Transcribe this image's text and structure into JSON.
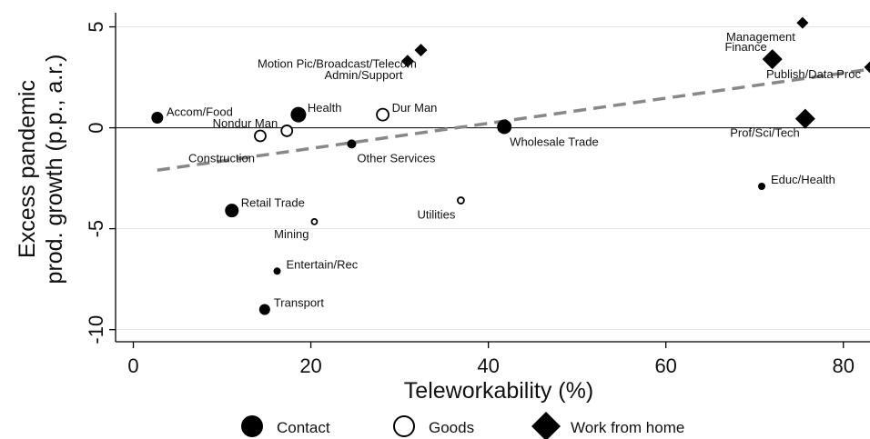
{
  "chart_data": {
    "type": "scatter",
    "xlabel": "Teleworkability (%)",
    "ylabel_lines": [
      "Excess pandemic",
      "prod. growth (p.p., a.r.)"
    ],
    "xlim": [
      -2,
      83
    ],
    "ylim": [
      -10.6,
      5.7
    ],
    "xticks": [
      0,
      20,
      40,
      60,
      80
    ],
    "yticks": [
      5,
      0,
      -5,
      -10
    ],
    "ygrid": true,
    "zero_line": true,
    "fit_line": {
      "x": [
        2.7,
        83
      ],
      "y": [
        -2.1,
        2.9
      ],
      "color": "#888888"
    },
    "legend_position": "bottom",
    "legend": [
      {
        "label": "Contact",
        "marker": "filled-circle"
      },
      {
        "label": "Goods",
        "marker": "hollow-circle"
      },
      {
        "label": "Work from home",
        "marker": "diamond"
      }
    ],
    "points": [
      {
        "label": "Accom/Food",
        "group": "Contact",
        "x": 2.7,
        "y": 0.5,
        "size": 6.5
      },
      {
        "label": "Health",
        "group": "Contact",
        "x": 18.6,
        "y": 0.65,
        "size": 8.5
      },
      {
        "label": "Retail Trade",
        "group": "Contact",
        "x": 11.1,
        "y": -4.1,
        "size": 7.5
      },
      {
        "label": "Entertain/Rec",
        "group": "Contact",
        "x": 16.2,
        "y": -7.1,
        "size": 4
      },
      {
        "label": "Transport",
        "group": "Contact",
        "x": 14.8,
        "y": -9.0,
        "size": 6
      },
      {
        "label": "Other Services",
        "group": "Contact",
        "x": 24.6,
        "y": -0.8,
        "size": 5
      },
      {
        "label": "Wholesale Trade",
        "group": "Contact",
        "x": 41.8,
        "y": 0.05,
        "size": 8
      },
      {
        "label": "Educ/Health",
        "group": "Contact",
        "x": 70.8,
        "y": -2.9,
        "size": 4
      },
      {
        "label": "Construction",
        "group": "Goods",
        "x": 14.3,
        "y": -0.4,
        "size": 6
      },
      {
        "label": "Nondur Man",
        "group": "Goods",
        "x": 17.3,
        "y": -0.15,
        "size": 6
      },
      {
        "label": "Dur Man",
        "group": "Goods",
        "x": 28.1,
        "y": 0.65,
        "size": 6.5
      },
      {
        "label": "Mining",
        "group": "Goods",
        "x": 20.4,
        "y": -4.65,
        "size": 3
      },
      {
        "label": "Utilities",
        "group": "Goods",
        "x": 36.9,
        "y": -3.6,
        "size": 3.5
      },
      {
        "label": "Motion Pic/Broadcast/Telecom",
        "group": "Work from home",
        "x": 30.9,
        "y": 3.3,
        "size": 7
      },
      {
        "label": "Admin/Support",
        "group": "Work from home",
        "x": 32.4,
        "y": 3.85,
        "size": 7
      },
      {
        "label": "Management",
        "group": "Work from home",
        "x": 75.4,
        "y": 5.2,
        "size": 6.5
      },
      {
        "label": "Finance",
        "group": "Work from home",
        "x": 72.0,
        "y": 3.4,
        "size": 11
      },
      {
        "label": "Publish/Data Proc",
        "group": "Work from home",
        "x": 83.0,
        "y": 3.0,
        "size": 6.5
      },
      {
        "label": "Prof/Sci/Tech",
        "group": "Work from home",
        "x": 75.7,
        "y": 0.45,
        "size": 11
      }
    ]
  }
}
